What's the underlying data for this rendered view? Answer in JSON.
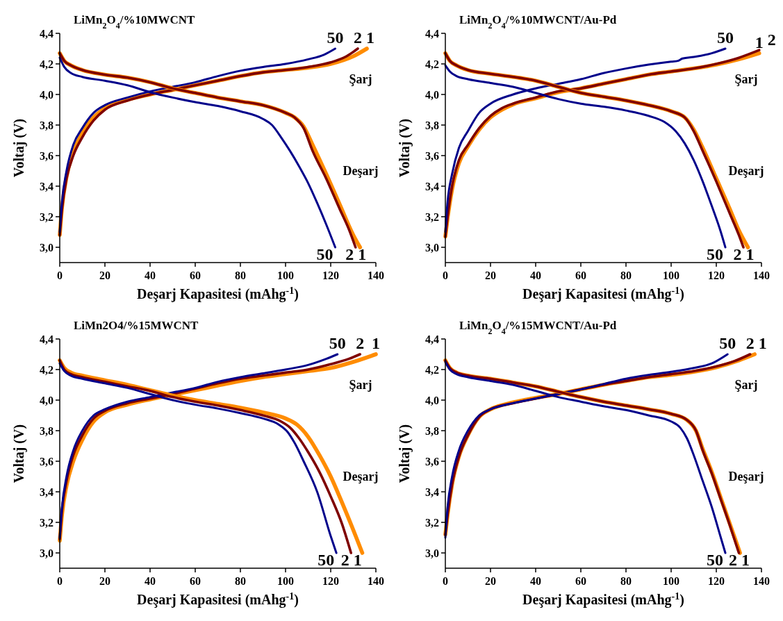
{
  "chart_data": [
    {
      "type": "line",
      "title": "LiMn$_{2}$O$_{4}$/%10MWCNT",
      "xlabel": "Deşarj Kapasitesi (mAhg$^{-1}$)",
      "ylabel": "Voltaj (V)",
      "xlim": [
        0,
        140
      ],
      "xticks": [
        0,
        20,
        40,
        60,
        80,
        100,
        120,
        140
      ],
      "ylim": [
        2.9,
        4.4
      ],
      "yticks": [
        {
          "value": 3.0,
          "label": "3,0"
        },
        {
          "value": 3.2,
          "label": "3,2"
        },
        {
          "value": 3.4,
          "label": "3,4"
        },
        {
          "value": 3.6,
          "label": "3,6"
        },
        {
          "value": 3.8,
          "label": "3,8"
        },
        {
          "value": 4.0,
          "label": "4,0"
        },
        {
          "value": 4.2,
          "label": "4,2"
        },
        {
          "value": 4.4,
          "label": "4,4"
        }
      ],
      "series": [
        {
          "name": "1",
          "color": "#ff8c00",
          "x": [
            0,
            1,
            3,
            6,
            10,
            15,
            20,
            30,
            40,
            50,
            60,
            70,
            80,
            90,
            100,
            110,
            120,
            130,
            136
          ],
          "values": [
            3.08,
            3.26,
            3.46,
            3.62,
            3.75,
            3.85,
            3.91,
            3.965,
            4.0,
            4.03,
            4.06,
            4.09,
            4.12,
            4.145,
            4.16,
            4.175,
            4.2,
            4.25,
            4.3
          ]
        },
        {
          "name": "2",
          "color": "#7f0000",
          "x": [
            0,
            1,
            3,
            6,
            10,
            15,
            20,
            30,
            40,
            50,
            60,
            70,
            80,
            90,
            100,
            110,
            120,
            127,
            132
          ],
          "values": [
            3.08,
            3.25,
            3.45,
            3.6,
            3.72,
            3.83,
            3.9,
            3.96,
            4.0,
            4.03,
            4.06,
            4.09,
            4.12,
            4.145,
            4.16,
            4.18,
            4.21,
            4.25,
            4.3
          ]
        },
        {
          "name": "50",
          "color": "#00008b",
          "x": [
            0,
            1,
            3,
            6,
            10,
            15,
            20,
            30,
            40,
            50,
            60,
            70,
            80,
            90,
            100,
            110,
            117,
            122
          ],
          "values": [
            3.1,
            3.3,
            3.5,
            3.67,
            3.78,
            3.88,
            3.93,
            3.98,
            4.02,
            4.05,
            4.08,
            4.12,
            4.155,
            4.18,
            4.2,
            4.23,
            4.26,
            4.3
          ]
        },
        {
          "name": "1",
          "color": "#ff8c00",
          "x": [
            0,
            2,
            5,
            10,
            20,
            30,
            40,
            50,
            60,
            70,
            80,
            90,
            100,
            104,
            108,
            112,
            118,
            124,
            130,
            133
          ],
          "values": [
            4.27,
            4.22,
            4.19,
            4.16,
            4.13,
            4.11,
            4.08,
            4.04,
            4.01,
            3.98,
            3.955,
            3.93,
            3.88,
            3.85,
            3.79,
            3.67,
            3.48,
            3.28,
            3.08,
            3.0
          ]
        },
        {
          "name": "2",
          "color": "#7f0000",
          "x": [
            0,
            2,
            5,
            10,
            20,
            30,
            40,
            50,
            60,
            70,
            80,
            90,
            100,
            104,
            108,
            112,
            118,
            124,
            128,
            131
          ],
          "values": [
            4.27,
            4.22,
            4.19,
            4.16,
            4.13,
            4.11,
            4.08,
            4.04,
            4.01,
            3.98,
            3.955,
            3.93,
            3.88,
            3.85,
            3.78,
            3.63,
            3.45,
            3.25,
            3.12,
            3.0
          ]
        },
        {
          "name": "50",
          "color": "#00008b",
          "x": [
            0,
            2,
            5,
            10,
            20,
            30,
            40,
            50,
            60,
            70,
            80,
            90,
            94,
            98,
            102,
            106,
            110,
            114,
            118,
            122
          ],
          "values": [
            4.24,
            4.18,
            4.14,
            4.115,
            4.09,
            4.06,
            4.015,
            3.98,
            3.95,
            3.925,
            3.89,
            3.84,
            3.8,
            3.72,
            3.63,
            3.53,
            3.42,
            3.29,
            3.15,
            3.0
          ]
        }
      ],
      "annotations": [
        "Şarj",
        "Deşarj"
      ]
    },
    {
      "type": "line",
      "title": "LiMn$_{2}$O$_{4}$/%10MWCNT/Au-Pd",
      "xlabel": "Deşarj Kapasitesi (mAhg$^{-1}$)",
      "ylabel": "Voltaj (V)",
      "xlim": [
        0,
        140
      ],
      "xticks": [
        0,
        20,
        40,
        60,
        80,
        100,
        120,
        140
      ],
      "ylim": [
        2.9,
        4.4
      ],
      "yticks": [
        {
          "value": 3.0,
          "label": "3,0"
        },
        {
          "value": 3.2,
          "label": "3,2"
        },
        {
          "value": 3.4,
          "label": "3,4"
        },
        {
          "value": 3.6,
          "label": "3,6"
        },
        {
          "value": 3.8,
          "label": "3,8"
        },
        {
          "value": 4.0,
          "label": "4,0"
        },
        {
          "value": 4.2,
          "label": "4,2"
        },
        {
          "value": 4.4,
          "label": "4,4"
        }
      ],
      "series": [
        {
          "name": "1",
          "color": "#ff8c00",
          "x": [
            0,
            1,
            3,
            6,
            10,
            15,
            20,
            25,
            30,
            40,
            50,
            60,
            70,
            80,
            90,
            100,
            110,
            120,
            130,
            139
          ],
          "values": [
            3.07,
            3.19,
            3.38,
            3.55,
            3.66,
            3.77,
            3.85,
            3.9,
            3.935,
            3.975,
            4.015,
            4.04,
            4.07,
            4.1,
            4.13,
            4.15,
            4.17,
            4.195,
            4.23,
            4.27
          ]
        },
        {
          "name": "2",
          "color": "#7f0000",
          "x": [
            0,
            1,
            3,
            6,
            10,
            15,
            20,
            25,
            30,
            40,
            50,
            60,
            70,
            80,
            90,
            100,
            110,
            120,
            130,
            139
          ],
          "values": [
            3.07,
            3.2,
            3.4,
            3.57,
            3.67,
            3.78,
            3.86,
            3.91,
            3.94,
            3.98,
            4.02,
            4.04,
            4.07,
            4.1,
            4.13,
            4.15,
            4.17,
            4.2,
            4.24,
            4.29
          ]
        },
        {
          "name": "50",
          "color": "#00008b",
          "x": [
            0,
            1,
            3,
            6,
            10,
            15,
            20,
            30,
            40,
            50,
            60,
            70,
            80,
            90,
            100,
            103,
            105,
            110,
            118,
            124
          ],
          "values": [
            3.1,
            3.3,
            3.48,
            3.65,
            3.76,
            3.88,
            3.94,
            4.0,
            4.04,
            4.07,
            4.1,
            4.14,
            4.17,
            4.195,
            4.215,
            4.22,
            4.235,
            4.245,
            4.27,
            4.3
          ]
        },
        {
          "name": "1",
          "color": "#ff8c00",
          "x": [
            0,
            2,
            5,
            10,
            20,
            30,
            40,
            50,
            60,
            70,
            80,
            90,
            100,
            106,
            110,
            114,
            120,
            126,
            130,
            134
          ],
          "values": [
            4.27,
            4.22,
            4.19,
            4.16,
            4.135,
            4.115,
            4.09,
            4.05,
            4.01,
            3.985,
            3.96,
            3.93,
            3.89,
            3.85,
            3.77,
            3.65,
            3.45,
            3.25,
            3.11,
            3.0
          ]
        },
        {
          "name": "2",
          "color": "#7f0000",
          "x": [
            0,
            2,
            5,
            10,
            20,
            30,
            40,
            50,
            60,
            70,
            80,
            90,
            100,
            106,
            110,
            114,
            120,
            126,
            130,
            132
          ],
          "values": [
            4.27,
            4.22,
            4.19,
            4.16,
            4.135,
            4.115,
            4.09,
            4.05,
            4.01,
            3.985,
            3.96,
            3.93,
            3.89,
            3.85,
            3.76,
            3.63,
            3.43,
            3.22,
            3.08,
            3.0
          ]
        },
        {
          "name": "50",
          "color": "#00008b",
          "x": [
            0,
            2,
            5,
            10,
            20,
            30,
            40,
            50,
            60,
            70,
            80,
            90,
            97,
            102,
            106,
            110,
            114,
            118,
            122,
            124
          ],
          "values": [
            4.19,
            4.15,
            4.12,
            4.1,
            4.075,
            4.05,
            4.01,
            3.97,
            3.94,
            3.92,
            3.895,
            3.86,
            3.82,
            3.76,
            3.68,
            3.57,
            3.43,
            3.27,
            3.1,
            3.0
          ]
        }
      ],
      "annotations": [
        "Şarj",
        "Deşarj"
      ]
    },
    {
      "type": "line",
      "title": "LiMn2O4/%15MWCNT",
      "xlabel": "Deşarj Kapasitesi (mAhg$^{-1}$)",
      "ylabel": "Voltaj (V)",
      "xlim": [
        0,
        140
      ],
      "xticks": [
        0,
        20,
        40,
        60,
        80,
        100,
        120,
        140
      ],
      "ylim": [
        2.9,
        4.4
      ],
      "yticks": [
        {
          "value": 3.0,
          "label": "3,0"
        },
        {
          "value": 3.2,
          "label": "3,2"
        },
        {
          "value": 3.4,
          "label": "3,4"
        },
        {
          "value": 3.6,
          "label": "3,6"
        },
        {
          "value": 3.8,
          "label": "3,8"
        },
        {
          "value": 4.0,
          "label": "4,0"
        },
        {
          "value": 4.2,
          "label": "4,2"
        },
        {
          "value": 4.4,
          "label": "4,4"
        }
      ],
      "series": [
        {
          "name": "1",
          "color": "#ff8c00",
          "x": [
            0,
            1,
            3,
            6,
            10,
            15,
            20,
            30,
            40,
            50,
            60,
            70,
            80,
            90,
            100,
            110,
            120,
            130,
            140
          ],
          "values": [
            3.08,
            3.25,
            3.44,
            3.6,
            3.74,
            3.86,
            3.92,
            3.97,
            4.005,
            4.035,
            4.065,
            4.095,
            4.125,
            4.15,
            4.17,
            4.19,
            4.21,
            4.25,
            4.3
          ]
        },
        {
          "name": "2",
          "color": "#7f0000",
          "x": [
            0,
            1,
            3,
            6,
            10,
            15,
            20,
            30,
            40,
            50,
            60,
            70,
            80,
            90,
            100,
            110,
            120,
            128,
            133
          ],
          "values": [
            3.09,
            3.28,
            3.47,
            3.64,
            3.77,
            3.88,
            3.93,
            3.98,
            4.01,
            4.04,
            4.075,
            4.11,
            4.14,
            4.16,
            4.18,
            4.2,
            4.235,
            4.27,
            4.3
          ]
        },
        {
          "name": "50",
          "color": "#00008b",
          "x": [
            0,
            1,
            3,
            6,
            10,
            15,
            20,
            30,
            40,
            50,
            60,
            70,
            80,
            90,
            100,
            110,
            118,
            123
          ],
          "values": [
            3.1,
            3.3,
            3.5,
            3.67,
            3.8,
            3.9,
            3.94,
            3.99,
            4.02,
            4.05,
            4.08,
            4.12,
            4.15,
            4.175,
            4.2,
            4.23,
            4.27,
            4.3
          ]
        },
        {
          "name": "1",
          "color": "#ff8c00",
          "x": [
            0,
            2,
            5,
            10,
            20,
            30,
            40,
            50,
            60,
            70,
            80,
            90,
            100,
            105,
            110,
            115,
            120,
            125,
            130,
            134
          ],
          "values": [
            4.26,
            4.21,
            4.18,
            4.16,
            4.13,
            4.1,
            4.065,
            4.03,
            4.0,
            3.975,
            3.95,
            3.92,
            3.88,
            3.84,
            3.76,
            3.64,
            3.5,
            3.33,
            3.15,
            3.0
          ]
        },
        {
          "name": "2",
          "color": "#7f0000",
          "x": [
            0,
            2,
            5,
            10,
            20,
            30,
            40,
            50,
            60,
            70,
            80,
            90,
            98,
            102,
            106,
            110,
            115,
            120,
            125,
            129
          ],
          "values": [
            4.26,
            4.2,
            4.17,
            4.15,
            4.12,
            4.09,
            4.06,
            4.02,
            3.99,
            3.965,
            3.935,
            3.9,
            3.86,
            3.82,
            3.75,
            3.66,
            3.53,
            3.37,
            3.19,
            3.0
          ]
        },
        {
          "name": "50",
          "color": "#00008b",
          "x": [
            0,
            2,
            5,
            10,
            20,
            30,
            40,
            50,
            60,
            70,
            80,
            90,
            97,
            101,
            104,
            108,
            114,
            120,
            122.5
          ],
          "values": [
            4.24,
            4.19,
            4.16,
            4.14,
            4.11,
            4.08,
            4.04,
            4.0,
            3.97,
            3.945,
            3.915,
            3.88,
            3.84,
            3.79,
            3.72,
            3.6,
            3.4,
            3.11,
            3.0
          ]
        }
      ],
      "annotations": [
        "Şarj",
        "Deşarj"
      ]
    },
    {
      "type": "line",
      "title": "LiMn$_{2}$O$_{4}$/%15MWCNT/Au-Pd",
      "xlabel": "Deşarj Kapasitesi (mAhg$^{-1}$)",
      "ylabel": "Voltaj (V)",
      "xlim": [
        0,
        140
      ],
      "xticks": [
        0,
        20,
        40,
        60,
        80,
        100,
        120,
        140
      ],
      "ylim": [
        2.9,
        4.4
      ],
      "yticks": [
        {
          "value": 3.0,
          "label": "3,0"
        },
        {
          "value": 3.2,
          "label": "3,2"
        },
        {
          "value": 3.4,
          "label": "3,4"
        },
        {
          "value": 3.6,
          "label": "3,6"
        },
        {
          "value": 3.8,
          "label": "3,8"
        },
        {
          "value": 4.0,
          "label": "4,0"
        },
        {
          "value": 4.2,
          "label": "4,2"
        },
        {
          "value": 4.4,
          "label": "4,4"
        }
      ],
      "series": [
        {
          "name": "1",
          "color": "#ff8c00",
          "x": [
            0,
            1,
            3,
            6,
            10,
            15,
            20,
            30,
            40,
            50,
            60,
            70,
            80,
            90,
            100,
            110,
            120,
            130,
            137
          ],
          "values": [
            3.12,
            3.25,
            3.45,
            3.63,
            3.77,
            3.89,
            3.94,
            3.985,
            4.015,
            4.04,
            4.07,
            4.1,
            4.125,
            4.15,
            4.165,
            4.185,
            4.215,
            4.26,
            4.3
          ]
        },
        {
          "name": "2",
          "color": "#7f0000",
          "x": [
            0,
            1,
            3,
            6,
            10,
            15,
            20,
            30,
            40,
            50,
            60,
            70,
            80,
            90,
            100,
            110,
            120,
            128,
            135
          ],
          "values": [
            3.12,
            3.25,
            3.45,
            3.63,
            3.77,
            3.89,
            3.94,
            3.98,
            4.01,
            4.04,
            4.07,
            4.1,
            4.125,
            4.15,
            4.17,
            4.19,
            4.22,
            4.255,
            4.3
          ]
        },
        {
          "name": "50",
          "color": "#00008b",
          "x": [
            0,
            1,
            3,
            6,
            10,
            15,
            20,
            30,
            40,
            50,
            60,
            70,
            80,
            90,
            100,
            110,
            118,
            125
          ],
          "values": [
            3.1,
            3.3,
            3.5,
            3.67,
            3.8,
            3.9,
            3.94,
            3.98,
            4.01,
            4.04,
            4.07,
            4.105,
            4.14,
            4.165,
            4.185,
            4.21,
            4.24,
            4.3
          ]
        },
        {
          "name": "1",
          "color": "#ff8c00",
          "x": [
            0,
            2,
            5,
            10,
            20,
            30,
            40,
            50,
            60,
            70,
            80,
            90,
            100,
            107,
            111,
            114,
            118,
            122,
            126,
            130.5
          ],
          "values": [
            4.26,
            4.21,
            4.18,
            4.16,
            4.14,
            4.115,
            4.09,
            4.055,
            4.02,
            3.99,
            3.965,
            3.94,
            3.91,
            3.87,
            3.8,
            3.68,
            3.53,
            3.36,
            3.19,
            3.0
          ]
        },
        {
          "name": "2",
          "color": "#7f0000",
          "x": [
            0,
            2,
            5,
            10,
            20,
            30,
            40,
            50,
            60,
            70,
            80,
            90,
            100,
            107,
            111,
            114,
            118,
            122,
            126,
            130
          ],
          "values": [
            4.26,
            4.21,
            4.18,
            4.16,
            4.14,
            4.115,
            4.09,
            4.055,
            4.02,
            3.99,
            3.965,
            3.94,
            3.91,
            3.87,
            3.8,
            3.67,
            3.52,
            3.35,
            3.18,
            3.0
          ]
        },
        {
          "name": "50",
          "color": "#00008b",
          "x": [
            0,
            2,
            5,
            10,
            20,
            30,
            40,
            50,
            60,
            70,
            80,
            90,
            100,
            104,
            107,
            110,
            114,
            118,
            122,
            124
          ],
          "values": [
            4.25,
            4.2,
            4.17,
            4.15,
            4.125,
            4.1,
            4.06,
            4.02,
            3.99,
            3.96,
            3.935,
            3.9,
            3.86,
            3.82,
            3.75,
            3.64,
            3.47,
            3.3,
            3.1,
            3.0
          ]
        }
      ],
      "annotations": [
        "Şarj",
        "Deşarj"
      ]
    }
  ]
}
